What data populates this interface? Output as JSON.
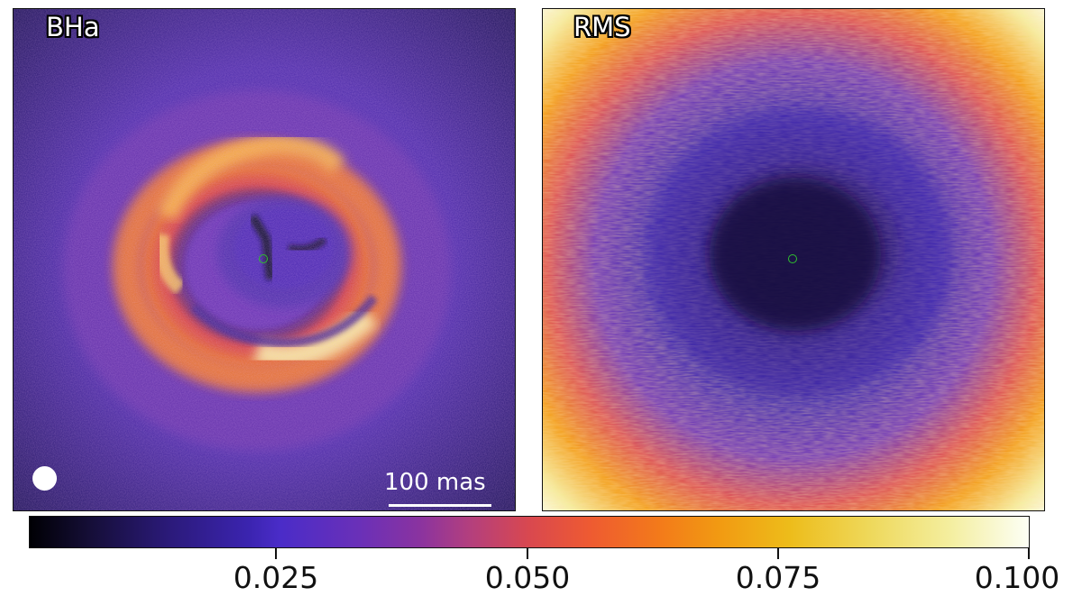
{
  "panels": {
    "left": {
      "label": "BHa",
      "scalebar": "100 mas"
    },
    "right": {
      "label": "RMS"
    }
  },
  "colorbar": {
    "colormap": "CMRmap",
    "range": [
      0,
      0.1
    ],
    "ticks": [
      "0.025",
      "0.050",
      "0.075",
      "0.100"
    ]
  },
  "colors": {
    "star_marker": "#2fbf2f",
    "scalebar": "#ffffff",
    "beam": "#ffffff"
  }
}
